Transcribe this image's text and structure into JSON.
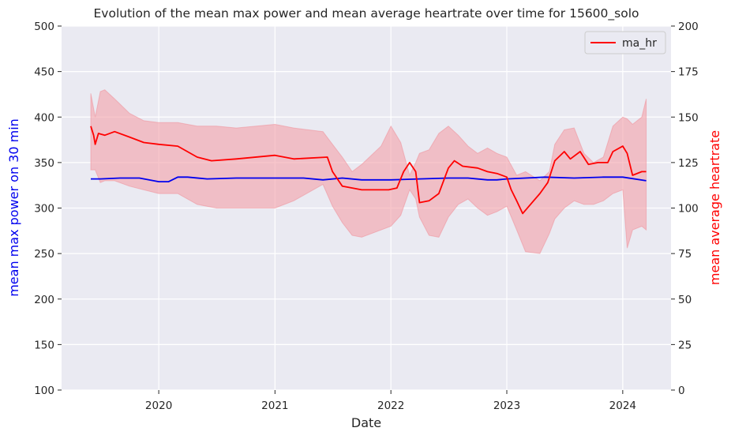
{
  "chart_data": {
    "type": "line",
    "title": "Evolution of the mean max power and mean average heartrate over time for 15600_solo",
    "xlabel": "Date",
    "ylabel_left": "mean max power on 30 min",
    "ylabel_right": "mean average heartrate",
    "xlim": [
      "2019-03-01",
      "2024-06-01"
    ],
    "ylim_left": [
      100,
      500
    ],
    "ylim_right": [
      0,
      200
    ],
    "x_ticks": [
      "2020",
      "2021",
      "2022",
      "2023",
      "2024"
    ],
    "y_ticks_left": [
      "100",
      "150",
      "200",
      "250",
      "300",
      "350",
      "400",
      "450",
      "500"
    ],
    "y_ticks_right": [
      "0",
      "25",
      "50",
      "75",
      "100",
      "125",
      "150",
      "175",
      "200"
    ],
    "grid": true,
    "legend": {
      "position": "top-right",
      "entries": [
        "ma_hr"
      ]
    },
    "colors": {
      "power": "#0000ee",
      "hr": "#ff0000",
      "band": "#f4a0a8",
      "background": "#eaeaf2"
    },
    "series": [
      {
        "axis": "left",
        "color": "#0000ee",
        "x": [
          "2019-06-01",
          "2019-07-01",
          "2019-09-01",
          "2019-11-01",
          "2019-12-01",
          "2020-01-01",
          "2020-02-01",
          "2020-03-01",
          "2020-04-01",
          "2020-06-01",
          "2020-09-01",
          "2021-01-01",
          "2021-04-01",
          "2021-06-01",
          "2021-08-01",
          "2021-10-01",
          "2022-01-01",
          "2022-04-01",
          "2022-07-01",
          "2022-09-01",
          "2022-11-01",
          "2022-12-01",
          "2023-01-01",
          "2023-03-01",
          "2023-05-01",
          "2023-08-01",
          "2023-11-01",
          "2024-01-01",
          "2024-03-15"
        ],
        "values": [
          332,
          332,
          333,
          333,
          331,
          329,
          329,
          334,
          334,
          332,
          333,
          333,
          333,
          331,
          333,
          331,
          331,
          332,
          333,
          333,
          331,
          331,
          332,
          333,
          334,
          333,
          334,
          334,
          330
        ]
      },
      {
        "name": "ma_hr",
        "axis": "right",
        "color": "#ff0000",
        "x": [
          "2019-06-01",
          "2019-06-10",
          "2019-06-15",
          "2019-06-25",
          "2019-07-15",
          "2019-08-15",
          "2019-10-01",
          "2019-11-15",
          "2020-01-01",
          "2020-03-01",
          "2020-05-01",
          "2020-06-15",
          "2020-09-01",
          "2021-01-01",
          "2021-03-01",
          "2021-06-15",
          "2021-07-01",
          "2021-08-01",
          "2021-10-01",
          "2021-12-01",
          "2021-12-25",
          "2022-01-20",
          "2022-02-10",
          "2022-03-01",
          "2022-03-20",
          "2022-04-01",
          "2022-05-01",
          "2022-06-01",
          "2022-07-01",
          "2022-07-20",
          "2022-08-15",
          "2022-10-01",
          "2022-11-01",
          "2022-12-01",
          "2023-01-01",
          "2023-01-15",
          "2023-02-01",
          "2023-02-20",
          "2023-04-15",
          "2023-05-10",
          "2023-06-01",
          "2023-07-01",
          "2023-07-20",
          "2023-08-20",
          "2023-09-15",
          "2023-10-15",
          "2023-11-15",
          "2023-12-01",
          "2024-01-01",
          "2024-01-15",
          "2024-02-01",
          "2024-03-01",
          "2024-03-15"
        ],
        "values": [
          145,
          140,
          135,
          141,
          140,
          142,
          139,
          136,
          135,
          134,
          128,
          126,
          127,
          129,
          127,
          128,
          120,
          112,
          110,
          110,
          110,
          111,
          120,
          125,
          120,
          103,
          104,
          108,
          122,
          126,
          123,
          122,
          120,
          119,
          117,
          110,
          104,
          97,
          108,
          114,
          126,
          131,
          127,
          131,
          124,
          125,
          125,
          131,
          134,
          130,
          118,
          120,
          120
        ]
      }
    ],
    "band": {
      "axis": "right",
      "x": [
        "2019-06-01",
        "2019-06-15",
        "2019-07-01",
        "2019-07-15",
        "2019-08-15",
        "2019-10-01",
        "2019-11-15",
        "2020-01-01",
        "2020-03-01",
        "2020-05-01",
        "2020-07-01",
        "2020-09-01",
        "2021-01-01",
        "2021-03-01",
        "2021-06-01",
        "2021-07-01",
        "2021-08-01",
        "2021-09-01",
        "2021-10-01",
        "2021-12-01",
        "2022-01-01",
        "2022-02-01",
        "2022-03-01",
        "2022-03-20",
        "2022-04-01",
        "2022-05-01",
        "2022-06-01",
        "2022-07-01",
        "2022-08-01",
        "2022-09-01",
        "2022-10-01",
        "2022-11-01",
        "2022-12-01",
        "2023-01-01",
        "2023-02-01",
        "2023-03-01",
        "2023-04-15",
        "2023-05-15",
        "2023-06-01",
        "2023-07-01",
        "2023-08-01",
        "2023-09-01",
        "2023-10-01",
        "2023-11-01",
        "2023-12-01",
        "2024-01-01",
        "2024-01-15",
        "2024-02-01",
        "2024-03-01",
        "2024-03-15"
      ],
      "upper": [
        163,
        150,
        164,
        165,
        160,
        152,
        148,
        147,
        147,
        145,
        145,
        144,
        146,
        144,
        142,
        135,
        128,
        120,
        124,
        134,
        145,
        136,
        118,
        125,
        130,
        132,
        141,
        145,
        140,
        134,
        130,
        133,
        130,
        128,
        118,
        120,
        115,
        120,
        135,
        143,
        144,
        130,
        125,
        128,
        145,
        150,
        149,
        146,
        150,
        160
      ],
      "lower": [
        121,
        121,
        114,
        115,
        115,
        112,
        110,
        108,
        108,
        102,
        100,
        100,
        100,
        104,
        113,
        101,
        92,
        85,
        84,
        88,
        90,
        96,
        110,
        105,
        95,
        85,
        84,
        95,
        102,
        105,
        100,
        96,
        98,
        101,
        88,
        76,
        75,
        86,
        94,
        100,
        104,
        102,
        102,
        104,
        108,
        110,
        78,
        88,
        90,
        88
      ]
    }
  }
}
